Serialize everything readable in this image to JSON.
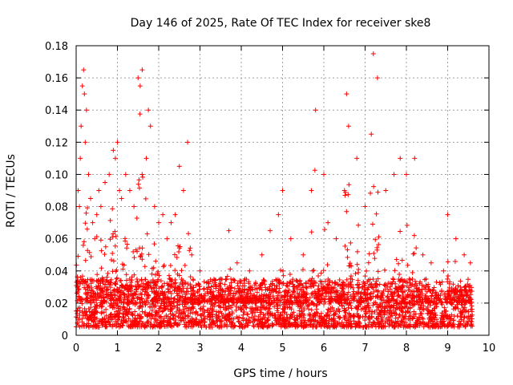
{
  "chart_data": {
    "type": "scatter",
    "title": "Day 146 of 2025, Rate Of TEC Index for receiver ske8",
    "xlabel": "GPS time / hours",
    "ylabel": "ROTI / TECUs",
    "xlim": [
      0,
      10
    ],
    "ylim": [
      0,
      0.18
    ],
    "x_ticks": [
      0,
      1,
      2,
      3,
      4,
      5,
      6,
      7,
      8,
      9,
      10
    ],
    "y_ticks": [
      0,
      0.02,
      0.04,
      0.06,
      0.08,
      0.1,
      0.12,
      0.14,
      0.16,
      0.18
    ],
    "grid": true,
    "marker": "+",
    "marker_color": "#ff0000",
    "data_extent_hours": [
      0,
      9.6
    ],
    "series": [
      {
        "name": "ROTI",
        "x": [
          0.05,
          0.08,
          0.1,
          0.12,
          0.15,
          0.18,
          0.2,
          0.22,
          0.25,
          0.3,
          0.35,
          0.4,
          0.45,
          0.5,
          0.55,
          0.6,
          0.7,
          0.8,
          0.9,
          0.95,
          1.0,
          1.05,
          1.1,
          1.2,
          1.3,
          1.4,
          1.5,
          1.55,
          1.6,
          1.7,
          1.75,
          1.8,
          1.9,
          2.0,
          2.1,
          2.2,
          2.3,
          2.4,
          2.5,
          2.6,
          2.7,
          2.8,
          3.0,
          3.2,
          3.5,
          3.7,
          3.9,
          4.2,
          4.5,
          4.7,
          4.9,
          5.0,
          5.2,
          5.5,
          5.7,
          5.8,
          6.0,
          6.1,
          6.3,
          6.5,
          6.55,
          6.6,
          6.8,
          7.0,
          7.15,
          7.2,
          7.3,
          7.5,
          7.7,
          7.85,
          8.0,
          8.2,
          8.4,
          8.6,
          8.9,
          9.0,
          9.2,
          9.4,
          9.55
        ],
        "y": [
          0.09,
          0.08,
          0.11,
          0.13,
          0.155,
          0.165,
          0.15,
          0.12,
          0.14,
          0.1,
          0.085,
          0.07,
          0.06,
          0.075,
          0.09,
          0.08,
          0.095,
          0.1,
          0.115,
          0.11,
          0.12,
          0.09,
          0.085,
          0.1,
          0.09,
          0.08,
          0.16,
          0.155,
          0.165,
          0.11,
          0.14,
          0.13,
          0.08,
          0.07,
          0.075,
          0.06,
          0.07,
          0.075,
          0.105,
          0.09,
          0.12,
          0.05,
          0.04,
          0.03,
          0.035,
          0.065,
          0.045,
          0.04,
          0.05,
          0.065,
          0.075,
          0.09,
          0.06,
          0.05,
          0.09,
          0.14,
          0.1,
          0.07,
          0.06,
          0.09,
          0.15,
          0.13,
          0.11,
          0.08,
          0.125,
          0.175,
          0.16,
          0.09,
          0.1,
          0.11,
          0.1,
          0.11,
          0.05,
          0.045,
          0.04,
          0.075,
          0.06,
          0.05,
          0.045
        ]
      }
    ],
    "background_band": {
      "description": "dense ROTI noise floor across full time range",
      "x_range": [
        0,
        9.6
      ],
      "y_range": [
        0.005,
        0.035
      ]
    }
  }
}
